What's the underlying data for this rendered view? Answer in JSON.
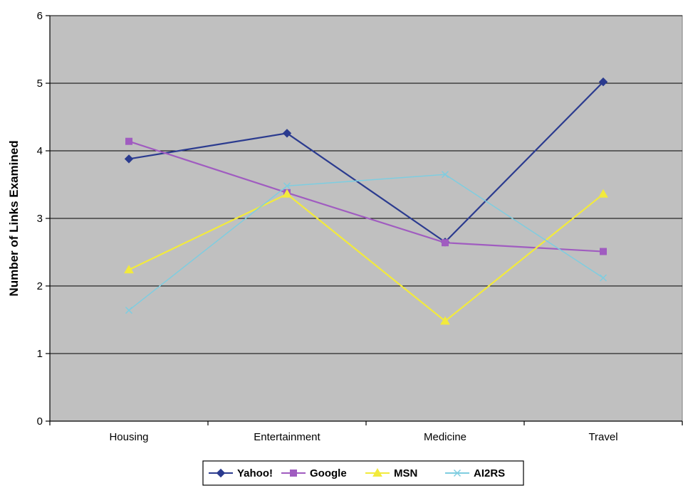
{
  "chart_data": {
    "type": "line",
    "title": "",
    "xlabel": "",
    "ylabel": "Number of Links Examined",
    "categories": [
      "Housing",
      "Entertainment",
      "Medicine",
      "Travel"
    ],
    "ylim": [
      0,
      6
    ],
    "yticks": [
      "0",
      "1",
      "2",
      "3",
      "4",
      "5",
      "6"
    ],
    "grid": true,
    "plot_background": "#c0c0c0",
    "legend_position": "bottom",
    "series": [
      {
        "name": "Yahoo!",
        "values": [
          3.88,
          4.26,
          2.65,
          5.02
        ],
        "color": "#2b3b8f",
        "marker": "diamond"
      },
      {
        "name": "Google",
        "values": [
          4.14,
          3.38,
          2.64,
          2.51
        ],
        "color": "#a05cc0",
        "marker": "square"
      },
      {
        "name": "MSN",
        "values": [
          2.24,
          3.36,
          1.48,
          3.36
        ],
        "color": "#f2ea3c",
        "marker": "triangle"
      },
      {
        "name": "AI2RS",
        "values": [
          1.64,
          3.48,
          3.65,
          2.12
        ],
        "color": "#7ecde0",
        "marker": "x"
      }
    ]
  }
}
